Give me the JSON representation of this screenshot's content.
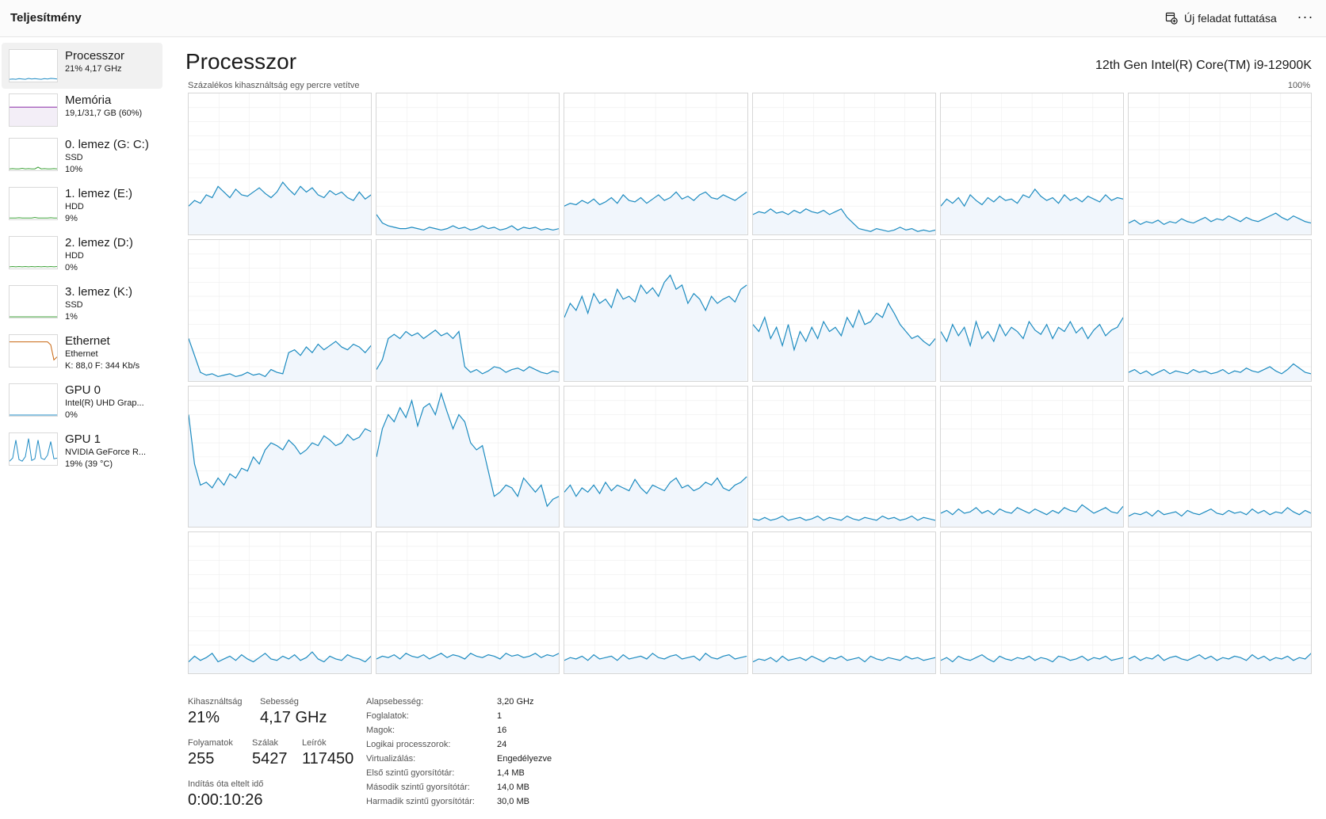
{
  "header": {
    "title": "Teljesítmény",
    "run_task_label": "Új feladat futtatása",
    "more_label": "···"
  },
  "sidebar": {
    "items": [
      {
        "name": "Processzor",
        "line1": "21% 4,17 GHz",
        "line2": "",
        "line3": "",
        "color": "#1f8bc4"
      },
      {
        "name": "Memória",
        "line1": "19,1/31,7 GB (60%)",
        "line2": "",
        "line3": "",
        "color": "#8b2fa8"
      },
      {
        "name": "0. lemez (G: C:)",
        "line1": "SSD",
        "line2": "10%",
        "line3": "",
        "color": "#3fa23a"
      },
      {
        "name": "1. lemez (E:)",
        "line1": "HDD",
        "line2": "9%",
        "line3": "",
        "color": "#3fa23a"
      },
      {
        "name": "2. lemez (D:)",
        "line1": "HDD",
        "line2": "0%",
        "line3": "",
        "color": "#3fa23a"
      },
      {
        "name": "3. lemez (K:)",
        "line1": "SSD",
        "line2": "1%",
        "line3": "",
        "color": "#3fa23a"
      },
      {
        "name": "Ethernet",
        "line1": "Ethernet",
        "line2": "K: 88,0 F: 344 Kb/s",
        "line3": "",
        "color": "#c8650f"
      },
      {
        "name": "GPU 0",
        "line1": "Intel(R) UHD Grap...",
        "line2": "0%",
        "line3": "",
        "color": "#1f8bc4"
      },
      {
        "name": "GPU 1",
        "line1": "NVIDIA GeForce R...",
        "line2": "19% (39 °C)",
        "line3": "",
        "color": "#1f8bc4"
      }
    ]
  },
  "main": {
    "title": "Processzor",
    "cpu_model": "12th Gen Intel(R) Core(TM) i9-12900K",
    "chart_caption": "Százalékos kihasználtság egy percre vetítve",
    "chart_max": "100%",
    "line_color": "#1c8bc0",
    "fill_color": "#f1f6fc"
  },
  "stats": {
    "utilization": {
      "label": "Kihasználtság",
      "value": "21%"
    },
    "speed": {
      "label": "Sebesség",
      "value": "4,17 GHz"
    },
    "processes": {
      "label": "Folyamatok",
      "value": "255"
    },
    "threads": {
      "label": "Szálak",
      "value": "5427"
    },
    "handles": {
      "label": "Leírók",
      "value": "117450"
    },
    "uptime": {
      "label": "Indítás óta eltelt idő",
      "value": "0:00:10:26"
    }
  },
  "specs": [
    {
      "key": "Alapsebesség:",
      "value": "3,20 GHz"
    },
    {
      "key": "Foglalatok:",
      "value": "1"
    },
    {
      "key": "Magok:",
      "value": "16"
    },
    {
      "key": "Logikai processzorok:",
      "value": "24"
    },
    {
      "key": "Virtualizálás:",
      "value": "Engedélyezve"
    },
    {
      "key": "Első szintű gyorsítótár:",
      "value": "1,4 MB"
    },
    {
      "key": "Második szintű gyorsítótár:",
      "value": "14,0 MB"
    },
    {
      "key": "Harmadik szintű gyorsítótár:",
      "value": "30,0 MB"
    }
  ],
  "chart_data": {
    "type": "area",
    "title": "",
    "xlabel": "",
    "ylabel": "",
    "ylim": [
      0,
      100
    ],
    "grid": true,
    "series": [
      {
        "values": [
          20,
          24,
          22,
          28,
          26,
          34,
          30,
          26,
          32,
          28,
          27,
          30,
          33,
          29,
          26,
          30,
          37,
          32,
          28,
          34,
          30,
          33,
          28,
          26,
          31,
          28,
          30,
          26,
          24,
          30,
          25,
          28
        ]
      },
      {
        "values": [
          14,
          8,
          6,
          5,
          4,
          4,
          5,
          4,
          3,
          5,
          4,
          3,
          4,
          6,
          4,
          5,
          3,
          4,
          6,
          4,
          5,
          3,
          4,
          6,
          3,
          5,
          4,
          5,
          3,
          4,
          3,
          4
        ]
      },
      {
        "values": [
          20,
          22,
          21,
          24,
          22,
          25,
          21,
          23,
          26,
          22,
          28,
          24,
          23,
          26,
          22,
          25,
          28,
          24,
          26,
          30,
          25,
          27,
          24,
          28,
          30,
          26,
          25,
          28,
          26,
          24,
          27,
          30
        ]
      },
      {
        "values": [
          14,
          16,
          15,
          18,
          15,
          16,
          14,
          17,
          15,
          18,
          16,
          15,
          17,
          14,
          16,
          18,
          12,
          8,
          4,
          3,
          2,
          4,
          3,
          2,
          3,
          5,
          3,
          4,
          2,
          3,
          2,
          3
        ]
      },
      {
        "values": [
          20,
          25,
          22,
          26,
          20,
          28,
          24,
          21,
          26,
          23,
          27,
          24,
          25,
          22,
          28,
          26,
          32,
          27,
          24,
          26,
          22,
          28,
          24,
          26,
          23,
          27,
          25,
          23,
          28,
          24,
          26,
          25
        ]
      },
      {
        "values": [
          8,
          10,
          7,
          9,
          8,
          10,
          7,
          9,
          8,
          11,
          9,
          8,
          10,
          12,
          9,
          11,
          10,
          13,
          11,
          9,
          12,
          10,
          9,
          11,
          13,
          15,
          12,
          10,
          13,
          11,
          9,
          8
        ]
      },
      {
        "values": [
          30,
          18,
          6,
          4,
          5,
          3,
          4,
          5,
          3,
          4,
          6,
          4,
          5,
          3,
          8,
          6,
          5,
          20,
          22,
          18,
          24,
          20,
          26,
          22,
          25,
          28,
          24,
          22,
          26,
          24,
          20,
          25
        ]
      },
      {
        "values": [
          8,
          15,
          30,
          33,
          30,
          35,
          32,
          34,
          30,
          33,
          36,
          32,
          34,
          30,
          35,
          10,
          6,
          8,
          5,
          7,
          10,
          9,
          6,
          8,
          9,
          7,
          10,
          8,
          6,
          5,
          7,
          6
        ]
      },
      {
        "values": [
          45,
          55,
          50,
          60,
          48,
          62,
          55,
          58,
          52,
          65,
          58,
          60,
          56,
          68,
          62,
          66,
          60,
          70,
          75,
          65,
          68,
          55,
          62,
          58,
          50,
          60,
          55,
          58,
          60,
          56,
          65,
          68
        ]
      },
      {
        "values": [
          40,
          35,
          45,
          30,
          38,
          25,
          40,
          22,
          35,
          28,
          38,
          30,
          42,
          35,
          38,
          32,
          45,
          38,
          50,
          40,
          42,
          48,
          45,
          55,
          48,
          40,
          35,
          30,
          32,
          28,
          25,
          30
        ]
      },
      {
        "values": [
          35,
          28,
          40,
          32,
          38,
          25,
          42,
          30,
          35,
          28,
          40,
          32,
          38,
          35,
          30,
          42,
          36,
          33,
          40,
          30,
          38,
          35,
          42,
          34,
          38,
          30,
          36,
          40,
          32,
          36,
          38,
          45
        ]
      },
      {
        "values": [
          6,
          8,
          5,
          7,
          4,
          6,
          8,
          5,
          7,
          6,
          5,
          8,
          6,
          7,
          5,
          6,
          8,
          5,
          7,
          6,
          9,
          7,
          6,
          8,
          10,
          7,
          5,
          8,
          12,
          9,
          6,
          5
        ]
      },
      {
        "values": [
          80,
          45,
          30,
          32,
          28,
          35,
          30,
          38,
          35,
          42,
          40,
          50,
          45,
          55,
          60,
          58,
          55,
          62,
          58,
          52,
          55,
          60,
          58,
          65,
          62,
          58,
          60,
          66,
          62,
          64,
          70,
          68
        ]
      },
      {
        "values": [
          50,
          70,
          80,
          75,
          85,
          78,
          90,
          72,
          85,
          88,
          80,
          95,
          82,
          70,
          80,
          75,
          60,
          55,
          58,
          40,
          22,
          25,
          30,
          28,
          22,
          35,
          30,
          25,
          30,
          15,
          20,
          22
        ]
      },
      {
        "values": [
          25,
          30,
          22,
          28,
          25,
          30,
          24,
          32,
          26,
          30,
          28,
          26,
          34,
          28,
          24,
          30,
          28,
          26,
          32,
          35,
          28,
          30,
          26,
          28,
          32,
          30,
          35,
          28,
          26,
          30,
          32,
          36
        ]
      },
      {
        "values": [
          6,
          5,
          7,
          5,
          6,
          8,
          5,
          6,
          7,
          5,
          6,
          8,
          5,
          7,
          6,
          5,
          8,
          6,
          5,
          7,
          6,
          5,
          8,
          6,
          7,
          5,
          6,
          8,
          5,
          7,
          6,
          5
        ]
      },
      {
        "values": [
          10,
          12,
          9,
          13,
          10,
          11,
          14,
          10,
          12,
          9,
          13,
          11,
          10,
          14,
          12,
          10,
          13,
          11,
          9,
          12,
          10,
          14,
          12,
          11,
          16,
          13,
          10,
          12,
          14,
          11,
          10,
          15
        ]
      },
      {
        "values": [
          8,
          10,
          9,
          11,
          8,
          12,
          9,
          10,
          11,
          8,
          12,
          10,
          9,
          11,
          13,
          10,
          9,
          12,
          10,
          11,
          9,
          13,
          10,
          12,
          9,
          11,
          10,
          14,
          11,
          9,
          12,
          10
        ]
      },
      {
        "values": [
          8,
          12,
          9,
          11,
          14,
          8,
          10,
          12,
          9,
          13,
          10,
          8,
          11,
          14,
          10,
          9,
          12,
          10,
          13,
          9,
          11,
          15,
          10,
          8,
          12,
          10,
          9,
          13,
          11,
          10,
          8,
          12
        ]
      },
      {
        "values": [
          10,
          12,
          11,
          13,
          10,
          14,
          12,
          11,
          13,
          10,
          12,
          14,
          11,
          13,
          12,
          10,
          14,
          12,
          11,
          13,
          12,
          10,
          14,
          12,
          13,
          11,
          12,
          14,
          11,
          13,
          12,
          14
        ]
      },
      {
        "values": [
          9,
          11,
          10,
          12,
          9,
          13,
          10,
          11,
          12,
          9,
          13,
          10,
          11,
          12,
          10,
          14,
          11,
          10,
          12,
          13,
          10,
          11,
          12,
          9,
          14,
          11,
          10,
          12,
          13,
          10,
          11,
          12
        ]
      },
      {
        "values": [
          8,
          10,
          9,
          11,
          8,
          12,
          9,
          10,
          11,
          9,
          12,
          10,
          8,
          11,
          10,
          12,
          9,
          10,
          11,
          8,
          12,
          10,
          9,
          11,
          10,
          9,
          12,
          10,
          11,
          9,
          10,
          11
        ]
      },
      {
        "values": [
          9,
          11,
          8,
          12,
          10,
          9,
          11,
          13,
          10,
          8,
          12,
          10,
          9,
          11,
          10,
          12,
          9,
          11,
          10,
          8,
          12,
          11,
          9,
          10,
          12,
          9,
          11,
          10,
          12,
          9,
          10,
          11
        ]
      },
      {
        "values": [
          10,
          12,
          9,
          11,
          10,
          13,
          9,
          11,
          12,
          10,
          9,
          11,
          13,
          10,
          12,
          9,
          11,
          10,
          12,
          11,
          9,
          13,
          10,
          12,
          9,
          11,
          10,
          12,
          9,
          11,
          10,
          14
        ]
      }
    ]
  }
}
